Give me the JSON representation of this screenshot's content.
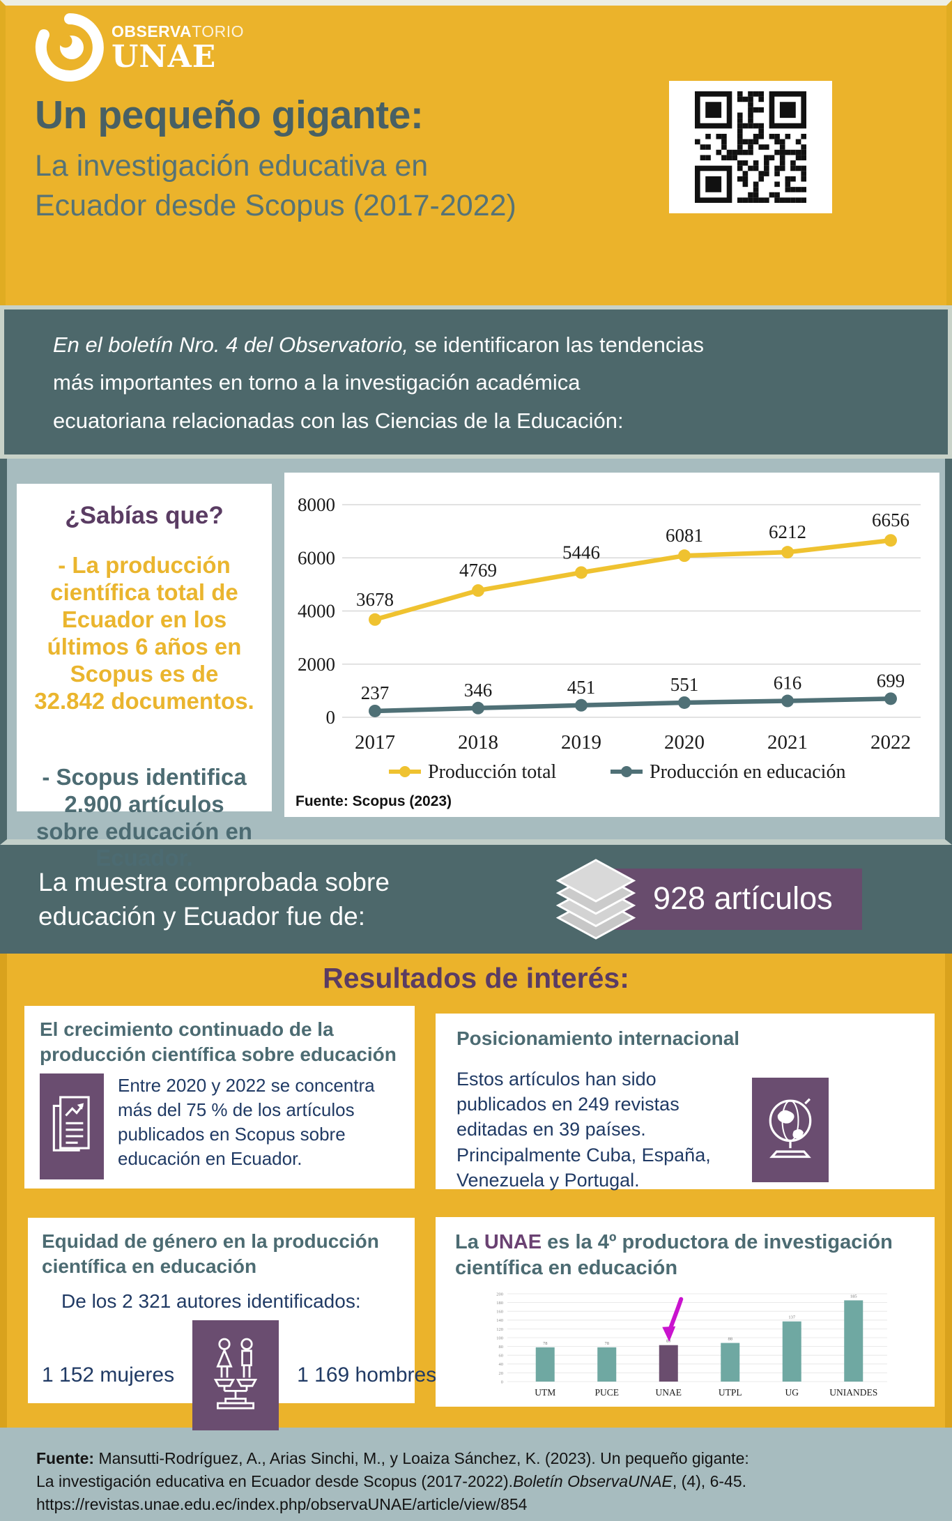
{
  "header": {
    "logo": {
      "brand_strong": "OBSERVA",
      "brand_light": "TORIO",
      "brand_bottom": "UNAE"
    },
    "title": "Un pequeño gigante:",
    "subtitle_line1": "La investigación educativa en",
    "subtitle_line2": "Ecuador desde Scopus (2017-2022)"
  },
  "intro": {
    "line1_italic": "En el boletín Nro. 4 del Observatorio,",
    "line1_rest": " se identificaron las tendencias",
    "line2": "más importantes en torno a la investigación académica",
    "line3": "ecuatoriana relacionadas con las Ciencias de la Educación:"
  },
  "didyouknow": {
    "title": "¿Sabías que?",
    "fact_production": "- La producción científica total de Ecuador en los últimos 6 años en Scopus es de 32.842 documentos.",
    "fact_scopus": "- Scopus identifica 2.900 artículos sobre educación en Ecuador."
  },
  "chart_section": {
    "source_note": "Fuente: Scopus (2023)"
  },
  "sample": {
    "line1": "La muestra comprobada sobre",
    "line2": "educación y Ecuador fue de:",
    "badge": "928 artículos"
  },
  "results": {
    "title": "Resultados de interés:",
    "cards": [
      {
        "heading": "El crecimiento continuado de la producción científica sobre educación",
        "body": "Entre 2020 y 2022 se concentra más del 75 % de los artículos publicados en Scopus sobre educación en Ecuador.",
        "icon": "document-trend-icon"
      },
      {
        "heading": "Posicionamiento internacional",
        "body": "Estos artículos han sido publicados en 249 revistas editadas en 39 países. Principalmente Cuba, España, Venezuela y Portugal.",
        "icon": "globe-icon"
      },
      {
        "heading": "Equidad de género en la producción científica en educación",
        "body": "De los 2 321 autores identificados:",
        "stat_women": "1 152 mujeres",
        "stat_men": "1 169 hombres",
        "icon": "gender-balance-icon"
      },
      {
        "heading_prefix": "La ",
        "heading_brand": "UNAE",
        "heading_suffix": " es la 4º productora de investigación científica en educación"
      }
    ]
  },
  "footer": {
    "label": "Fuente:",
    "line1_rest": " Mansutti-Rodríguez, A., Arias Sinchi, M., y Loaiza Sánchez, K. (2023). Un pequeño gigante:",
    "line2_part1": "La investigación educativa en Ecuador desde Scopus (2017-2022).",
    "line2_italic": "Boletín ObservaUNAE",
    "line2_part2": ", (4), 6-45.",
    "line3": "https://revistas.unae.edu.ec/index.php/observaUNAE/article/view/854"
  },
  "colors": {
    "yellow_bg": "#EBB32B",
    "teal_band": "#4D686B",
    "panel_blue": "#A7BCBF",
    "purple_heading": "#5A3C63",
    "purple_tile": "#6A4D70",
    "badge_purple": "#684C6D",
    "heading_teal": "#4C6B72",
    "body_navy": "#203A64",
    "line_total": "#EFC230",
    "line_education": "#4F7076",
    "bar_teal": "#6FA8A2",
    "bar_highlight": "#6A4D6E",
    "arrow_magenta": "#C913CE"
  },
  "chart_data": [
    {
      "type": "line",
      "x": [
        "2017",
        "2018",
        "2019",
        "2020",
        "2021",
        "2022"
      ],
      "series": [
        {
          "name": "Producción total",
          "values": [
            3678,
            4769,
            5446,
            6081,
            6212,
            6656
          ],
          "color": "#EFC230"
        },
        {
          "name": "Producción en educación",
          "values": [
            237,
            346,
            451,
            551,
            616,
            699
          ],
          "color": "#4F7076"
        }
      ],
      "ylim": [
        0,
        8000
      ],
      "yticks": [
        0,
        2000,
        4000,
        6000,
        8000
      ],
      "grid": true,
      "legend_position": "bottom",
      "source": "Fuente: Scopus (2023)"
    },
    {
      "type": "bar",
      "categories": [
        "UTM",
        "PUCE",
        "UNAE",
        "UTPL",
        "UG",
        "UNIANDES"
      ],
      "values": [
        78,
        78,
        83,
        88,
        137,
        185
      ],
      "highlight_category": "UNAE",
      "bar_color": "#6FA8A2",
      "highlight_color": "#6A4D6E",
      "arrow_color": "#C913CE",
      "ylim": [
        0,
        200
      ],
      "ytick_step": 20,
      "grid": true,
      "annotation": "magenta arrow pointing to UNAE bar"
    }
  ]
}
